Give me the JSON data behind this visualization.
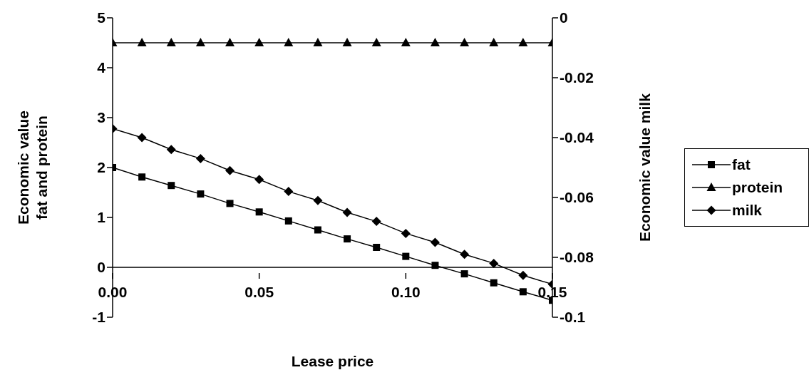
{
  "chart_data": {
    "type": "line",
    "xlabel": "Lease price",
    "ylabel": "Economic value fat and protein",
    "y2label": "Economic value milk",
    "x": [
      0,
      0.01,
      0.02,
      0.03,
      0.04,
      0.05,
      0.06,
      0.07,
      0.08,
      0.09,
      0.1,
      0.11,
      0.12,
      0.13,
      0.14,
      0.15
    ],
    "xlim": [
      0,
      0.15
    ],
    "xticks": [
      {
        "value": 0,
        "label": "0.00"
      },
      {
        "value": 0.05,
        "label": "0.05"
      },
      {
        "value": 0.1,
        "label": "0.10"
      },
      {
        "value": 0.15,
        "label": "0.15"
      }
    ],
    "ylim": [
      -1,
      5
    ],
    "yticks": [
      -1,
      0,
      1,
      2,
      3,
      4,
      5
    ],
    "y2lim": [
      -0.1,
      0
    ],
    "y2ticks": [
      -0.1,
      -0.08,
      -0.06,
      -0.04,
      -0.02,
      0
    ],
    "grid": false,
    "legend": "right",
    "series": [
      {
        "name": "fat",
        "color": "#000000",
        "marker": "square",
        "values": [
          2.0,
          1.81,
          1.64,
          1.47,
          1.28,
          1.11,
          0.93,
          0.75,
          0.57,
          0.4,
          0.22,
          0.04,
          -0.13,
          -0.31,
          -0.49,
          -0.66
        ]
      },
      {
        "name": "protein",
        "color": "#000000",
        "marker": "triangle",
        "values": [
          4.5,
          4.5,
          4.5,
          4.5,
          4.5,
          4.5,
          4.5,
          4.5,
          4.5,
          4.5,
          4.5,
          4.5,
          4.5,
          4.5,
          4.5,
          4.5
        ]
      },
      {
        "name": "milk",
        "color": "#000000",
        "marker": "diamond",
        "axis": "y2",
        "values": [
          -0.037,
          -0.04,
          -0.044,
          -0.047,
          -0.051,
          -0.054,
          -0.058,
          -0.061,
          -0.065,
          -0.068,
          -0.072,
          -0.075,
          -0.079,
          -0.082,
          -0.086,
          -0.089
        ]
      }
    ]
  }
}
